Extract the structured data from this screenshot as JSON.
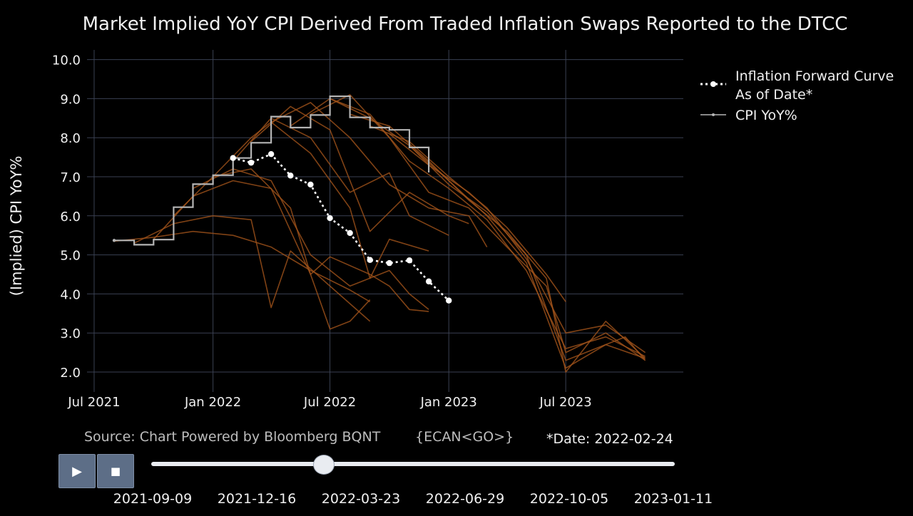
{
  "chart_data": {
    "type": "line",
    "title": "Market Implied YoY CPI Derived From Traded Inflation Swaps Reported to the DTCC",
    "ylabel": "(Implied) CPI YoY%",
    "xlabel": "",
    "ylim": [
      1.5,
      10.0
    ],
    "y_ticks": [
      "2.0",
      "3.0",
      "4.0",
      "5.0",
      "6.0",
      "7.0",
      "8.0",
      "9.0",
      "10.0"
    ],
    "x_ticks": [
      {
        "label": "Jul 2021",
        "date": "2021-07-01"
      },
      {
        "label": "Jan 2022",
        "date": "2022-01-01"
      },
      {
        "label": "Jul 2022",
        "date": "2022-07-01"
      },
      {
        "label": "Jan 2023",
        "date": "2023-01-01"
      },
      {
        "label": "Jul 2023",
        "date": "2023-07-01"
      }
    ],
    "grid": true,
    "legend": "top-right",
    "series": [
      {
        "name": "Inflation Forward Curve As of Date*",
        "style": "dotted-with-markers",
        "color": "#ffffff",
        "points": [
          {
            "x": "2022-02-01",
            "y": 7.48
          },
          {
            "x": "2022-03-01",
            "y": 7.36
          },
          {
            "x": "2022-04-01",
            "y": 7.58
          },
          {
            "x": "2022-05-01",
            "y": 7.03
          },
          {
            "x": "2022-06-01",
            "y": 6.8
          },
          {
            "x": "2022-07-01",
            "y": 5.94
          },
          {
            "x": "2022-08-01",
            "y": 5.56
          },
          {
            "x": "2022-09-01",
            "y": 4.87
          },
          {
            "x": "2022-10-01",
            "y": 4.79
          },
          {
            "x": "2022-11-01",
            "y": 4.86
          },
          {
            "x": "2022-12-01",
            "y": 4.32
          },
          {
            "x": "2023-01-01",
            "y": 3.83
          }
        ]
      },
      {
        "name": "CPI YoY%",
        "style": "step",
        "color": "#b5b5b5",
        "points": [
          {
            "x": "2021-08-01",
            "y": 5.37
          },
          {
            "x": "2021-09-01",
            "y": 5.26
          },
          {
            "x": "2021-10-01",
            "y": 5.39
          },
          {
            "x": "2021-11-01",
            "y": 6.22
          },
          {
            "x": "2021-12-01",
            "y": 6.81
          },
          {
            "x": "2022-01-01",
            "y": 7.04
          },
          {
            "x": "2022-02-01",
            "y": 7.48
          },
          {
            "x": "2022-03-01",
            "y": 7.87
          },
          {
            "x": "2022-04-01",
            "y": 8.54
          },
          {
            "x": "2022-05-01",
            "y": 8.26
          },
          {
            "x": "2022-06-01",
            "y": 8.58
          },
          {
            "x": "2022-07-01",
            "y": 9.06
          },
          {
            "x": "2022-08-01",
            "y": 8.52
          },
          {
            "x": "2022-09-01",
            "y": 8.26
          },
          {
            "x": "2022-10-01",
            "y": 8.2
          },
          {
            "x": "2022-11-01",
            "y": 7.75
          },
          {
            "x": "2022-12-01",
            "y": 7.11
          }
        ]
      },
      {
        "name": "",
        "style": "history",
        "color": "#a0521a",
        "curves": [
          [
            [
              "2021-08-01",
              5.35
            ],
            [
              "2021-10-01",
              5.45
            ],
            [
              "2021-12-01",
              5.6
            ],
            [
              "2022-02-01",
              5.5
            ],
            [
              "2022-04-01",
              5.2
            ],
            [
              "2022-06-01",
              4.6
            ],
            [
              "2022-08-01",
              4.1
            ],
            [
              "2022-09-01",
              3.8
            ]
          ],
          [
            [
              "2021-09-01",
              5.3
            ],
            [
              "2021-11-01",
              5.8
            ],
            [
              "2022-01-01",
              6.0
            ],
            [
              "2022-03-01",
              5.9
            ],
            [
              "2022-04-01",
              3.65
            ],
            [
              "2022-05-01",
              5.1
            ],
            [
              "2022-07-01",
              4.2
            ],
            [
              "2022-09-01",
              3.3
            ]
          ],
          [
            [
              "2021-10-01",
              5.4
            ],
            [
              "2021-12-01",
              6.5
            ],
            [
              "2022-02-01",
              6.9
            ],
            [
              "2022-04-01",
              6.7
            ],
            [
              "2022-06-01",
              4.5
            ],
            [
              "2022-07-01",
              3.1
            ],
            [
              "2022-08-01",
              3.3
            ],
            [
              "2022-09-01",
              3.85
            ]
          ],
          [
            [
              "2021-11-01",
              6.0
            ],
            [
              "2022-01-01",
              7.0
            ],
            [
              "2022-03-01",
              7.2
            ],
            [
              "2022-05-01",
              6.2
            ],
            [
              "2022-06-01",
              4.5
            ],
            [
              "2022-07-01",
              4.95
            ],
            [
              "2022-09-01",
              4.5
            ],
            [
              "2022-10-01",
              4.2
            ],
            [
              "2022-11-01",
              3.6
            ],
            [
              "2022-12-01",
              3.55
            ]
          ],
          [
            [
              "2021-12-01",
              6.7
            ],
            [
              "2022-02-01",
              7.2
            ],
            [
              "2022-04-01",
              6.9
            ],
            [
              "2022-06-01",
              5.0
            ],
            [
              "2022-08-01",
              4.2
            ],
            [
              "2022-10-01",
              4.6
            ],
            [
              "2022-11-01",
              4.0
            ],
            [
              "2022-12-01",
              3.6
            ]
          ],
          [
            [
              "2022-01-01",
              7.0
            ],
            [
              "2022-03-01",
              8.0
            ],
            [
              "2022-04-01",
              8.4
            ],
            [
              "2022-06-01",
              7.6
            ],
            [
              "2022-08-01",
              6.2
            ],
            [
              "2022-09-01",
              4.4
            ],
            [
              "2022-10-01",
              5.4
            ],
            [
              "2022-12-01",
              5.1
            ]
          ],
          [
            [
              "2022-02-01",
              7.4
            ],
            [
              "2022-04-01",
              8.5
            ],
            [
              "2022-06-01",
              8.0
            ],
            [
              "2022-08-01",
              6.6
            ],
            [
              "2022-10-01",
              7.1
            ],
            [
              "2022-11-01",
              6.0
            ],
            [
              "2023-01-01",
              5.5
            ]
          ],
          [
            [
              "2022-03-01",
              7.9
            ],
            [
              "2022-05-01",
              8.8
            ],
            [
              "2022-07-01",
              8.2
            ],
            [
              "2022-09-01",
              5.6
            ],
            [
              "2022-11-01",
              6.6
            ],
            [
              "2023-01-01",
              6.0
            ],
            [
              "2023-02-01",
              5.8
            ]
          ],
          [
            [
              "2022-04-01",
              8.4
            ],
            [
              "2022-06-01",
              8.9
            ],
            [
              "2022-08-01",
              8.0
            ],
            [
              "2022-10-01",
              6.8
            ],
            [
              "2022-12-01",
              6.2
            ],
            [
              "2023-02-01",
              6.0
            ],
            [
              "2023-03-01",
              5.2
            ]
          ],
          [
            [
              "2022-05-01",
              8.3
            ],
            [
              "2022-07-01",
              9.0
            ],
            [
              "2022-09-01",
              8.6
            ],
            [
              "2022-11-01",
              7.4
            ],
            [
              "2023-01-01",
              6.7
            ],
            [
              "2023-03-01",
              5.9
            ],
            [
              "2023-05-01",
              4.6
            ],
            [
              "2023-07-01",
              2.6
            ],
            [
              "2023-09-01",
              2.9
            ],
            [
              "2023-11-01",
              2.4
            ]
          ],
          [
            [
              "2022-06-01",
              8.6
            ],
            [
              "2022-08-01",
              9.1
            ],
            [
              "2022-10-01",
              8.0
            ],
            [
              "2022-12-01",
              6.6
            ],
            [
              "2023-02-01",
              6.2
            ],
            [
              "2023-04-01",
              5.2
            ],
            [
              "2023-06-01",
              4.2
            ],
            [
              "2023-07-01",
              2.5
            ],
            [
              "2023-09-01",
              3.0
            ],
            [
              "2023-11-01",
              2.3
            ]
          ],
          [
            [
              "2022-07-01",
              9.0
            ],
            [
              "2022-09-01",
              8.5
            ],
            [
              "2022-11-01",
              7.8
            ],
            [
              "2023-01-01",
              6.9
            ],
            [
              "2023-03-01",
              6.0
            ],
            [
              "2023-05-01",
              4.8
            ],
            [
              "2023-07-01",
              2.1
            ],
            [
              "2023-09-01",
              2.7
            ],
            [
              "2023-11-01",
              2.35
            ]
          ],
          [
            [
              "2022-08-01",
              8.6
            ],
            [
              "2022-10-01",
              8.3
            ],
            [
              "2022-12-01",
              7.4
            ],
            [
              "2023-02-01",
              6.4
            ],
            [
              "2023-04-01",
              5.6
            ],
            [
              "2023-06-01",
              4.4
            ],
            [
              "2023-07-01",
              2.0
            ],
            [
              "2023-09-01",
              3.3
            ],
            [
              "2023-11-01",
              2.35
            ]
          ],
          [
            [
              "2022-09-01",
              8.3
            ],
            [
              "2022-11-01",
              7.9
            ],
            [
              "2023-01-01",
              7.0
            ],
            [
              "2023-03-01",
              6.2
            ],
            [
              "2023-05-01",
              4.9
            ],
            [
              "2023-07-01",
              3.0
            ],
            [
              "2023-09-01",
              3.2
            ],
            [
              "2023-11-01",
              2.5
            ]
          ],
          [
            [
              "2022-10-01",
              8.1
            ],
            [
              "2022-12-01",
              7.3
            ],
            [
              "2023-02-01",
              6.6
            ],
            [
              "2023-04-01",
              5.7
            ],
            [
              "2023-06-01",
              4.5
            ],
            [
              "2023-07-01",
              3.8
            ]
          ],
          [
            [
              "2022-11-01",
              7.8
            ],
            [
              "2023-01-01",
              6.8
            ],
            [
              "2023-03-01",
              6.1
            ],
            [
              "2023-05-01",
              5.0
            ],
            [
              "2023-07-01",
              2.3
            ],
            [
              "2023-10-01",
              2.9
            ],
            [
              "2023-11-01",
              2.3
            ]
          ]
        ]
      }
    ]
  },
  "legend": {
    "items": [
      {
        "line1": "Inflation Forward Curve",
        "line2": "As of Date*"
      },
      {
        "line1": "CPI YoY%",
        "line2": ""
      }
    ]
  },
  "footer": {
    "source": "Source: Chart Powered by Bloomberg BQNT",
    "ecan": "{ECAN<GO>}",
    "date_label": "*Date: 2022-02-24"
  },
  "controls": {
    "play_icon": "play-icon",
    "stop_icon": "stop-icon",
    "play_glyph": "▶",
    "stop_glyph": "■",
    "slider_value": "2022-02-24",
    "slider_labels": [
      "2021-09-09",
      "2021-12-16",
      "2022-03-23",
      "2022-06-29",
      "2022-10-05",
      "2023-01-11"
    ]
  },
  "colors": {
    "background": "#000000",
    "grid": "#3a4152",
    "history": "#a0521a",
    "cpi": "#b5b5b5",
    "forward": "#ffffff"
  }
}
